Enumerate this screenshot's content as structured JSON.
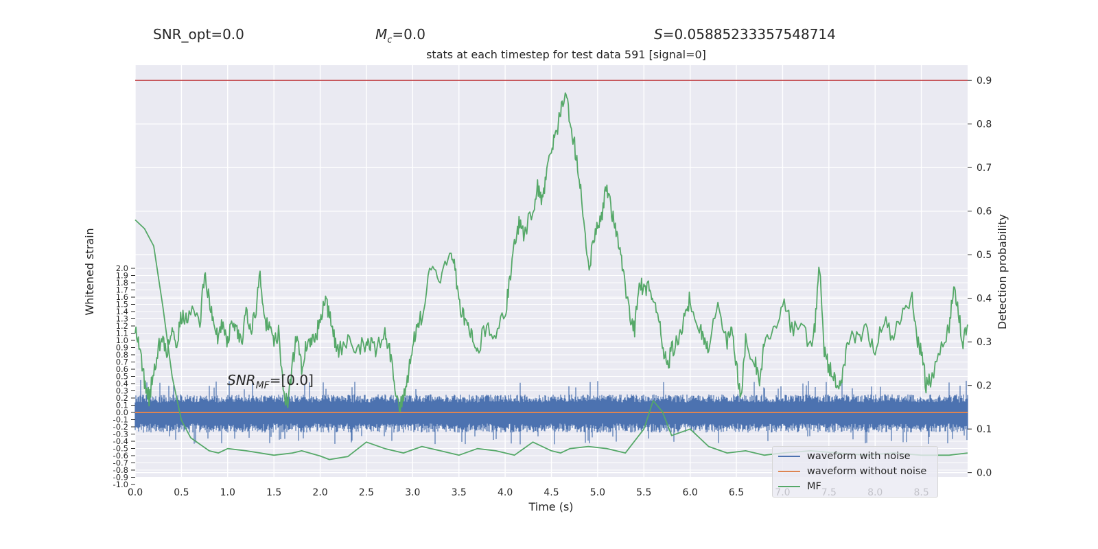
{
  "header": {
    "snr_opt": "SNR_opt=0.0",
    "mc_symbol": "M",
    "mc_sub": "c",
    "mc_value": "=0.0",
    "s_symbol": "S",
    "s_value": "=0.05885233357548714",
    "snr_mf_sym": "SNR",
    "snr_mf_sub": "MF",
    "snr_mf_value": "=[0.0]"
  },
  "chart_data": {
    "type": "line",
    "title": "stats at each timestep for test data 591 [signal=0]",
    "xlabel": "Time (s)",
    "ylabel_left": "Whitened strain",
    "ylabel_right": "Detection probability",
    "xlim": [
      0,
      9
    ],
    "x_ticks": [
      "0.0",
      "0.5",
      "1.0",
      "1.5",
      "2.0",
      "2.5",
      "3.0",
      "3.5",
      "4.0",
      "4.5",
      "5.0",
      "5.5",
      "6.0",
      "6.5",
      "7.0",
      "7.5",
      "8.0",
      "8.5"
    ],
    "y_left_ticks": [
      "2.0",
      "1.9",
      "1.8",
      "1.7",
      "1.6",
      "1.5",
      "1.4",
      "1.3",
      "1.2",
      "1.1",
      "1.0",
      "0.9",
      "0.8",
      "0.7",
      "0.6",
      "0.5",
      "0.4",
      "0.3",
      "0.2",
      "0.1",
      "0.0",
      "-0.1",
      "-0.2",
      "-0.3",
      "-0.4",
      "-0.5",
      "-0.6",
      "-0.7",
      "-0.8",
      "-0.9",
      "-1.0"
    ],
    "y_right_ticks": [
      "0.0",
      "0.1",
      "0.2",
      "0.3",
      "0.4",
      "0.5",
      "0.6",
      "0.7",
      "0.8",
      "0.9"
    ],
    "ylim_right": [
      -0.01,
      0.935
    ],
    "threshold": 0.9,
    "grid": true,
    "legend_position": "lower-right",
    "series": [
      {
        "name": "waveform with noise",
        "color": "#4c72b0",
        "description": "dense white noise around 0, typical amplitude about +/-0.25, spikes to about +/-0.45",
        "envelope": [
          -0.28,
          0.25
        ],
        "spikes": [
          -0.45,
          0.45
        ]
      },
      {
        "name": "waveform without noise",
        "color": "#dd8452",
        "y_value": 0.0
      },
      {
        "name": "MF",
        "color": "#55a868",
        "axis": "right",
        "x": [
          0.0,
          0.1,
          0.2,
          0.3,
          0.4,
          0.5,
          0.6,
          0.7,
          0.8,
          0.9,
          1.0,
          1.2,
          1.5,
          1.7,
          1.8,
          2.0,
          2.1,
          2.3,
          2.5,
          2.7,
          2.9,
          3.1,
          3.3,
          3.5,
          3.7,
          3.9,
          4.1,
          4.3,
          4.5,
          4.6,
          4.7,
          4.9,
          5.1,
          5.3,
          5.5,
          5.6,
          5.7,
          5.8,
          6.0,
          6.2,
          6.4,
          6.6,
          6.8,
          7.0,
          7.3,
          7.6,
          7.9,
          8.2,
          8.5,
          8.8,
          9.0
        ],
        "values": [
          0.58,
          0.56,
          0.52,
          0.38,
          0.22,
          0.12,
          0.08,
          0.065,
          0.05,
          0.045,
          0.055,
          0.05,
          0.04,
          0.045,
          0.05,
          0.038,
          0.03,
          0.037,
          0.07,
          0.055,
          0.045,
          0.06,
          0.05,
          0.04,
          0.055,
          0.05,
          0.04,
          0.07,
          0.05,
          0.045,
          0.055,
          0.06,
          0.055,
          0.045,
          0.1,
          0.165,
          0.14,
          0.085,
          0.1,
          0.06,
          0.045,
          0.05,
          0.04,
          0.045,
          0.05,
          0.045,
          0.04,
          0.045,
          0.04,
          0.04,
          0.045
        ]
      },
      {
        "name": "detection probability",
        "color": "#55a868",
        "axis": "right",
        "x": [
          0.0,
          0.05,
          0.1,
          0.15,
          0.2,
          0.25,
          0.3,
          0.35,
          0.4,
          0.45,
          0.5,
          0.55,
          0.6,
          0.7,
          0.75,
          0.8,
          0.85,
          0.9,
          0.95,
          1.0,
          1.05,
          1.1,
          1.15,
          1.2,
          1.25,
          1.3,
          1.35,
          1.4,
          1.45,
          1.5,
          1.55,
          1.6,
          1.65,
          1.7,
          1.75,
          1.8,
          1.85,
          1.9,
          1.95,
          2.0,
          2.05,
          2.1,
          2.15,
          2.2,
          2.3,
          2.4,
          2.5,
          2.55,
          2.6,
          2.7,
          2.75,
          2.8,
          2.85,
          2.9,
          2.95,
          3.0,
          3.05,
          3.1,
          3.2,
          3.3,
          3.4,
          3.45,
          3.5,
          3.55,
          3.6,
          3.65,
          3.7,
          3.8,
          3.9,
          4.0,
          4.05,
          4.1,
          4.15,
          4.2,
          4.3,
          4.35,
          4.4,
          4.45,
          4.5,
          4.55,
          4.6,
          4.65,
          4.7,
          4.75,
          4.8,
          4.85,
          4.9,
          4.95,
          5.0,
          5.05,
          5.1,
          5.15,
          5.2,
          5.25,
          5.3,
          5.35,
          5.4,
          5.45,
          5.5,
          5.55,
          5.6,
          5.65,
          5.7,
          5.75,
          5.8,
          5.85,
          5.9,
          5.95,
          6.0,
          6.1,
          6.15,
          6.2,
          6.3,
          6.4,
          6.45,
          6.5,
          6.55,
          6.6,
          6.7,
          6.75,
          6.8,
          6.9,
          7.0,
          7.1,
          7.2,
          7.3,
          7.35,
          7.4,
          7.45,
          7.5,
          7.55,
          7.6,
          7.65,
          7.7,
          7.8,
          7.9,
          8.0,
          8.1,
          8.2,
          8.3,
          8.4,
          8.45,
          8.5,
          8.55,
          8.6,
          8.7,
          8.8,
          8.85,
          8.9,
          8.95,
          9.0
        ],
        "values": [
          0.34,
          0.28,
          0.21,
          0.17,
          0.23,
          0.29,
          0.3,
          0.28,
          0.33,
          0.3,
          0.36,
          0.35,
          0.38,
          0.34,
          0.46,
          0.4,
          0.33,
          0.31,
          0.35,
          0.3,
          0.35,
          0.32,
          0.3,
          0.38,
          0.33,
          0.36,
          0.46,
          0.35,
          0.33,
          0.3,
          0.32,
          0.2,
          0.15,
          0.25,
          0.32,
          0.24,
          0.29,
          0.3,
          0.31,
          0.35,
          0.4,
          0.36,
          0.31,
          0.28,
          0.3,
          0.28,
          0.3,
          0.3,
          0.28,
          0.32,
          0.28,
          0.21,
          0.15,
          0.18,
          0.22,
          0.3,
          0.34,
          0.36,
          0.47,
          0.45,
          0.5,
          0.48,
          0.39,
          0.36,
          0.34,
          0.31,
          0.28,
          0.34,
          0.32,
          0.36,
          0.45,
          0.52,
          0.57,
          0.55,
          0.6,
          0.66,
          0.62,
          0.68,
          0.74,
          0.77,
          0.83,
          0.88,
          0.81,
          0.75,
          0.67,
          0.59,
          0.47,
          0.52,
          0.57,
          0.6,
          0.66,
          0.6,
          0.56,
          0.5,
          0.43,
          0.36,
          0.33,
          0.44,
          0.42,
          0.43,
          0.39,
          0.37,
          0.3,
          0.24,
          0.28,
          0.3,
          0.32,
          0.37,
          0.4,
          0.33,
          0.3,
          0.28,
          0.4,
          0.29,
          0.35,
          0.24,
          0.18,
          0.3,
          0.26,
          0.21,
          0.3,
          0.32,
          0.4,
          0.33,
          0.34,
          0.29,
          0.34,
          0.48,
          0.28,
          0.24,
          0.22,
          0.18,
          0.23,
          0.3,
          0.31,
          0.33,
          0.28,
          0.35,
          0.31,
          0.36,
          0.4,
          0.3,
          0.28,
          0.2,
          0.21,
          0.27,
          0.34,
          0.43,
          0.37,
          0.3,
          0.34
        ]
      }
    ]
  }
}
